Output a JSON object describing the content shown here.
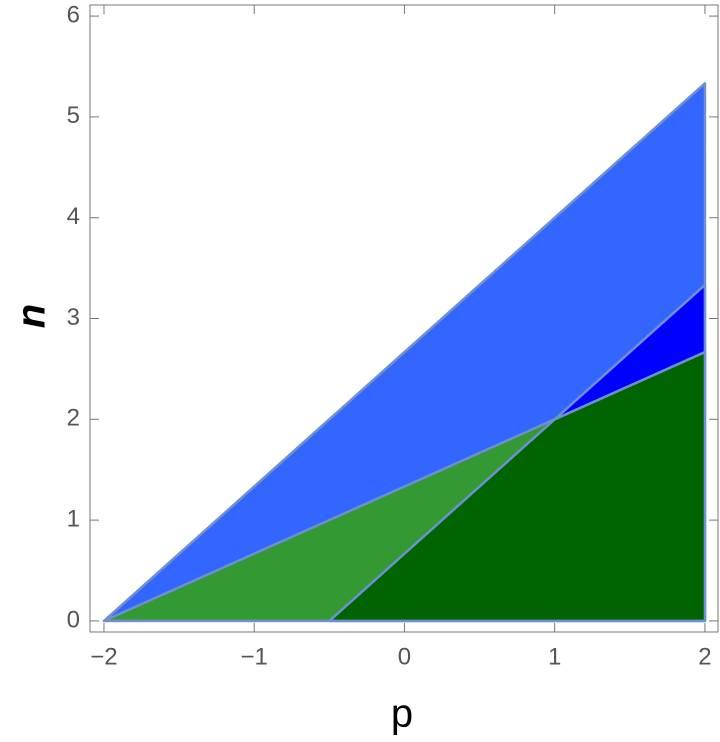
{
  "chart_data": {
    "type": "region",
    "xlabel": "p",
    "ylabel": "n",
    "xlim": [
      -2.093,
      2.087
    ],
    "ylim": [
      -0.11,
      6.11
    ],
    "xticks": [
      {
        "value": -2,
        "label": "−2"
      },
      {
        "value": -1,
        "label": "−1"
      },
      0,
      1,
      2
    ],
    "yticks": [
      0,
      1,
      2,
      3,
      4,
      5,
      6
    ],
    "series": [
      {
        "color": "#3366ff",
        "x": [
          -2,
          2,
          2
        ],
        "values": [
          0,
          5.333,
          0
        ]
      },
      {
        "color": "#339933",
        "x": [
          -2,
          1,
          2,
          2
        ],
        "values": [
          0,
          2,
          2.667,
          0
        ]
      },
      {
        "color": "#006400",
        "x": [
          -0.5,
          1,
          2,
          2
        ],
        "values": [
          0,
          2,
          2.667,
          0
        ]
      },
      {
        "color": "#0000ff",
        "x": [
          1,
          2,
          2
        ],
        "values": [
          2,
          3.333,
          2.667
        ]
      }
    ]
  }
}
